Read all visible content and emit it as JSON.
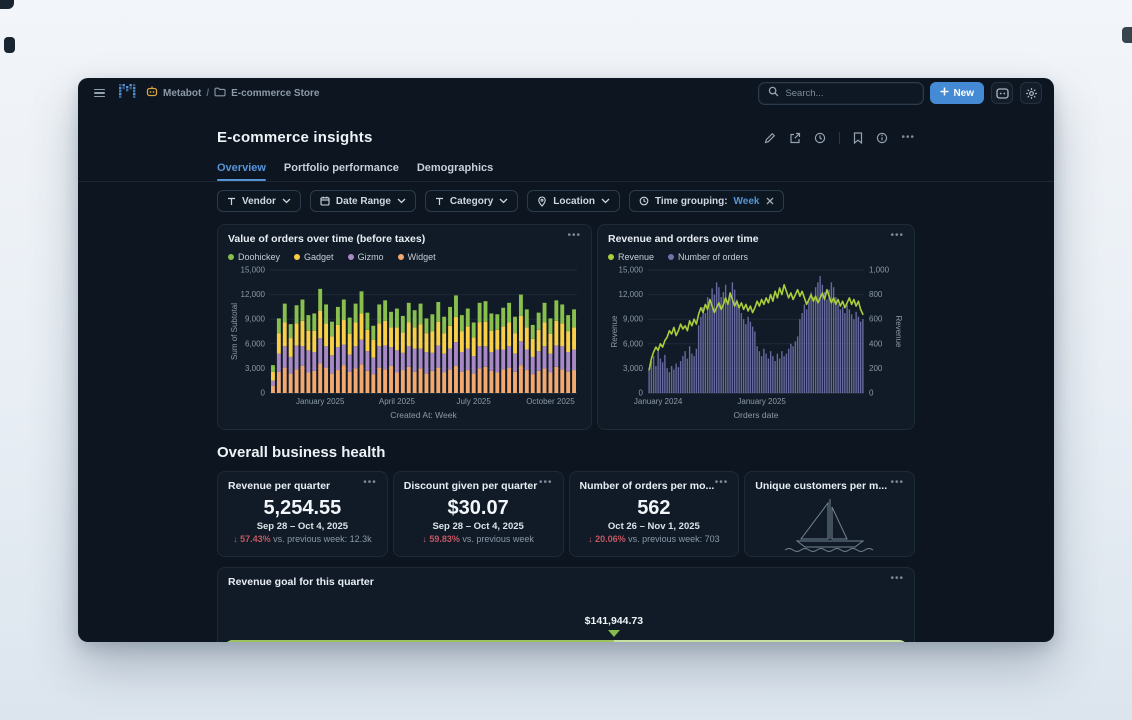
{
  "topbar": {
    "breadcrumb": {
      "root": "Metabot",
      "separator": "/",
      "collection": "E-commerce Store"
    },
    "search_placeholder": "Search...",
    "new_button_label": "New",
    "accent_blue": "#448ad5"
  },
  "header": {
    "title": "E-commerce insights"
  },
  "tabs": [
    {
      "label": "Overview",
      "active": true
    },
    {
      "label": "Portfolio performance",
      "active": false
    },
    {
      "label": "Demographics",
      "active": false
    }
  ],
  "filters": [
    {
      "icon": "text-filter-icon",
      "label": "Vendor"
    },
    {
      "icon": "calendar-icon",
      "label": "Date Range"
    },
    {
      "icon": "text-filter-icon",
      "label": "Category"
    },
    {
      "icon": "location-pin-icon",
      "label": "Location"
    },
    {
      "icon": "clock-icon",
      "label": "Time grouping:",
      "value": "Week",
      "removable": true
    }
  ],
  "section_heading": "Overall business health",
  "kpis": [
    {
      "title": "Revenue per quarter",
      "value": "5,254.55",
      "period": "Sep 28 – Oct 4, 2025",
      "delta_pct": "57.43%",
      "delta_dir": "down",
      "delta_rest": "vs. previous week: 12.3k"
    },
    {
      "title": "Discount given per quarter",
      "value": "$30.07",
      "period": "Sep 28 – Oct 4, 2025",
      "delta_pct": "59.83%",
      "delta_dir": "down",
      "delta_rest": "vs. previous week"
    },
    {
      "title": "Number of orders per mo...",
      "value": "562",
      "period": "Oct 26 – Nov 1, 2025",
      "delta_pct": "20.06%",
      "delta_dir": "down",
      "delta_rest": "vs. previous week: 703"
    },
    {
      "title": "Unique customers per m...",
      "empty_state": "sailboat"
    }
  ],
  "goal": {
    "title": "Revenue goal for this quarter",
    "value": "$141,944.73",
    "progress_pct": 57,
    "fill_color": "#9cc35c",
    "track_color": "#c7e1a1",
    "marker_color": "#84bb4c"
  },
  "chart_data": [
    {
      "type": "bar",
      "variant": "stacked",
      "title": "Value of orders over time (before taxes)",
      "xlabel": "Created At: Week",
      "ylabel": "Sum of Subtotal",
      "ylim": [
        0,
        15000
      ],
      "yticks": [
        0,
        3000,
        6000,
        9000,
        12000,
        15000
      ],
      "ytick_labels": [
        "0",
        "3,000",
        "6,000",
        "9,000",
        "12,000",
        "15,000"
      ],
      "x_ticks": [
        {
          "index": 8,
          "label": "January 2025"
        },
        {
          "index": 21,
          "label": "April 2025"
        },
        {
          "index": 34,
          "label": "July 2025"
        },
        {
          "index": 47,
          "label": "October 2025"
        }
      ],
      "grid": true,
      "legend_position": "top",
      "legend": [
        {
          "label": "Doohickey",
          "color": "#88BF4D"
        },
        {
          "label": "Gadget",
          "color": "#F9CF48"
        },
        {
          "label": "Gizmo",
          "color": "#A989C5"
        },
        {
          "label": "Widget",
          "color": "#F2A86F"
        }
      ],
      "stack_order": [
        "Widget",
        "Gizmo",
        "Gadget",
        "Doohickey"
      ],
      "colors": {
        "Doohickey": "#88BF4D",
        "Gadget": "#F9CF48",
        "Gizmo": "#A989C5",
        "Widget": "#F2A86F"
      },
      "series": [
        {
          "name": "Widget",
          "values": [
            900,
            2600,
            3100,
            2400,
            2900,
            3300,
            2500,
            2700,
            3600,
            3100,
            2400,
            2800,
            3400,
            2600,
            3000,
            3500,
            2700,
            2300,
            3100,
            2900,
            3300,
            2500,
            2800,
            3200,
            2600,
            3000,
            2400,
            2700,
            3100,
            2500,
            2900,
            3300,
            2600,
            2800,
            2400,
            3000,
            3200,
            2700,
            2500,
            2900,
            3100,
            2600,
            3400,
            2800,
            2300,
            2700,
            3000,
            2500,
            3200,
            2900,
            2600,
            2800
          ]
        },
        {
          "name": "Gizmo",
          "values": [
            600,
            2200,
            2600,
            2000,
            2900,
            2400,
            2700,
            2300,
            3100,
            2600,
            2200,
            2800,
            2500,
            2100,
            2700,
            3000,
            2400,
            2000,
            2600,
            2900,
            2300,
            2700,
            2100,
            2500,
            2800,
            2400,
            2600,
            2200,
            2700,
            2300,
            2500,
            2900,
            2400,
            2600,
            2100,
            2700,
            2500,
            2300,
            2800,
            2400,
            2600,
            2200,
            2900,
            2500,
            2100,
            2400,
            2700,
            2300,
            2600,
            2800,
            2400,
            2500
          ]
        },
        {
          "name": "Gadget",
          "values": [
            1100,
            2500,
            2900,
            2300,
            2700,
            3100,
            2400,
            2600,
            3300,
            2800,
            2300,
            2700,
            3000,
            2500,
            2900,
            3200,
            2600,
            2200,
            2800,
            3000,
            2400,
            2800,
            2500,
            2900,
            2600,
            3000,
            2300,
            2600,
            2900,
            2500,
            2800,
            3100,
            2500,
            2700,
            2300,
            2900,
            3000,
            2600,
            2400,
            2800,
            2900,
            2500,
            3100,
            2700,
            2200,
            2600,
            2900,
            2400,
            3000,
            2800,
            2500,
            2700
          ]
        },
        {
          "name": "Doohickey",
          "values": [
            800,
            1800,
            2300,
            1700,
            2200,
            2600,
            1900,
            2100,
            2700,
            2300,
            1800,
            2200,
            2500,
            2000,
            2300,
            2700,
            2100,
            1700,
            2300,
            2500,
            1900,
            2300,
            2000,
            2400,
            2100,
            2500,
            1800,
            2100,
            2400,
            2000,
            2300,
            2600,
            2000,
            2200,
            1800,
            2400,
            2500,
            2100,
            1900,
            2300,
            2400,
            2000,
            2600,
            2200,
            1700,
            2100,
            2400,
            1900,
            2500,
            2300,
            2000,
            2200
          ]
        }
      ]
    },
    {
      "type": "line",
      "variant": "combo-line-bar",
      "title": "Revenue and orders over time",
      "xlabel": "Orders date",
      "ylabel_left": "Revenue",
      "ylabel_right": "Revenue",
      "ylim_left": [
        0,
        15000
      ],
      "ylim_right": [
        0,
        1000
      ],
      "yticks_left": [
        0,
        3000,
        6000,
        9000,
        12000,
        15000
      ],
      "ytick_labels_left": [
        "0",
        "3,000",
        "6,000",
        "9,000",
        "12,000",
        "15,000"
      ],
      "yticks_right": [
        0,
        200,
        400,
        600,
        800,
        1000
      ],
      "ytick_labels_right": [
        "0",
        "200",
        "400",
        "600",
        "800",
        "1,000"
      ],
      "x_ticks": [
        {
          "index": 4,
          "label": "January 2024"
        },
        {
          "index": 50,
          "label": "January 2025"
        }
      ],
      "grid": true,
      "legend_position": "top",
      "legend": [
        {
          "label": "Revenue",
          "color": "#A8CE3B"
        },
        {
          "label": "Number of orders",
          "color": "#7172AD"
        }
      ],
      "line": {
        "name": "Revenue",
        "color": "#A8CE3B",
        "axis": "left",
        "values": [
          2800,
          4200,
          5000,
          5600,
          5200,
          6000,
          5600,
          6400,
          6800,
          7600,
          7200,
          8000,
          7000,
          7600,
          8400,
          7800,
          8200,
          7600,
          8800,
          8200,
          9000,
          8400,
          9600,
          10400,
          9800,
          10800,
          10200,
          11400,
          10600,
          9800,
          10400,
          11000,
          10200,
          10800,
          11600,
          10800,
          12200,
          11400,
          10600,
          11200,
          10400,
          11000,
          10200,
          10800,
          10000,
          10600,
          9800,
          10400,
          11200,
          10600,
          11400,
          10800,
          11600,
          11000,
          12000,
          11200,
          12400,
          11600,
          12800,
          12000,
          13200,
          12400,
          11600,
          12200,
          11400,
          12000,
          12600,
          11800,
          12400,
          11600,
          10800,
          11400,
          12000,
          11200,
          11800,
          11000,
          11600,
          12200,
          11400,
          12600,
          11800,
          11000,
          11600,
          10800,
          11400,
          10600,
          11200,
          10400,
          11000,
          11600,
          10800,
          11400,
          10600,
          11200,
          10200,
          9600
        ]
      },
      "bars": {
        "name": "Number of orders",
        "color": "#7172AD",
        "axis": "right",
        "values": [
          180,
          260,
          300,
          220,
          340,
          280,
          250,
          310,
          200,
          170,
          220,
          190,
          240,
          210,
          260,
          300,
          340,
          280,
          380,
          320,
          300,
          360,
          550,
          620,
          700,
          650,
          780,
          720,
          850,
          800,
          900,
          860,
          780,
          820,
          880,
          750,
          820,
          900,
          840,
          760,
          700,
          650,
          600,
          560,
          620,
          580,
          540,
          500,
          380,
          340,
          300,
          360,
          320,
          280,
          340,
          300,
          260,
          320,
          280,
          340,
          300,
          320,
          360,
          400,
          380,
          420,
          460,
          600,
          650,
          720,
          680,
          760,
          820,
          780,
          860,
          900,
          950,
          880,
          820,
          760,
          840,
          900,
          860,
          780,
          720,
          680,
          700,
          650,
          720,
          680,
          640,
          600,
          660,
          620,
          580,
          600
        ]
      }
    }
  ]
}
